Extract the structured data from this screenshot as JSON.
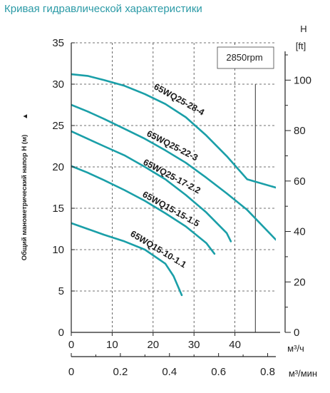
{
  "title": "Кривая гидравлической характеристики",
  "chart_data": {
    "type": "line",
    "ylabel": "Общий манометрический напор H (м)",
    "ylabel_arrow": "▲",
    "y_unit": "",
    "ylim": [
      0,
      35
    ],
    "yticks": [
      0,
      5,
      10,
      15,
      20,
      25,
      30,
      35
    ],
    "right_axis_label": "H",
    "right_axis_unit": "[ft]",
    "right_ylim": [
      0,
      114.8
    ],
    "right_ticks": [
      0,
      20,
      40,
      60,
      80,
      100
    ],
    "x_unit": "м³/ч",
    "xlim": [
      0,
      50
    ],
    "xticks": [
      0,
      10,
      20,
      30,
      40
    ],
    "x2_unit": "м³/мин",
    "x2lim": [
      0,
      0.8333
    ],
    "x2ticks": [
      "0",
      "0.2",
      "0.4",
      "0.6",
      "0.8"
    ],
    "speed_label": "2850rpm",
    "grid": true,
    "line_color": "#1a9fa8",
    "series": [
      {
        "name": "65WQ25-28-4",
        "x": [
          0,
          4,
          8,
          13,
          18,
          23,
          28,
          33,
          38,
          43,
          50
        ],
        "y": [
          31.2,
          31.0,
          30.5,
          29.8,
          28.8,
          27.6,
          26.0,
          23.8,
          21.3,
          18.5,
          17.5
        ]
      },
      {
        "name": "65WQ25-22-3",
        "x": [
          0,
          4,
          8,
          13,
          18,
          23,
          28,
          33,
          38,
          43,
          50
        ],
        "y": [
          27.5,
          26.7,
          25.8,
          24.6,
          23.4,
          22.0,
          20.5,
          18.7,
          16.8,
          14.8,
          11.2
        ]
      },
      {
        "name": "65WQ25-17-2.2",
        "x": [
          0,
          4,
          8,
          13,
          18,
          23,
          28,
          33,
          38,
          39
        ],
        "y": [
          24.3,
          23.4,
          22.5,
          21.4,
          20.0,
          18.5,
          16.6,
          14.5,
          12.0,
          11.0
        ]
      },
      {
        "name": "65WQ15-15-1.5",
        "x": [
          0,
          4,
          8,
          13,
          18,
          23,
          28,
          33,
          35
        ],
        "y": [
          20.1,
          19.3,
          18.4,
          17.2,
          15.9,
          14.4,
          12.8,
          10.8,
          9.5
        ]
      },
      {
        "name": "65WQ15-10-1.1",
        "x": [
          0,
          4,
          8,
          13,
          18,
          23,
          25,
          27
        ],
        "y": [
          13.2,
          12.5,
          11.8,
          11.0,
          10.0,
          8.3,
          6.8,
          4.5
        ]
      }
    ]
  }
}
